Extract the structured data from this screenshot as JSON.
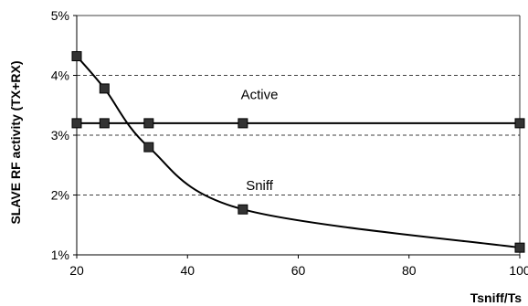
{
  "chart_data": {
    "type": "line",
    "xlabel": "Tsniff/Ts",
    "ylabel": "SLAVE  RF activity (TX+RX)",
    "xlim": [
      20,
      100
    ],
    "ylim": [
      1,
      5
    ],
    "x_ticks": [
      20,
      40,
      60,
      80,
      100
    ],
    "x_tick_labels": [
      "20",
      "40",
      "60",
      "80",
      "100"
    ],
    "y_ticks": [
      1,
      2,
      3,
      4,
      5
    ],
    "y_tick_labels": [
      "1%",
      "2%",
      "3%",
      "4%",
      "5%"
    ],
    "grid": "horizontal dashed",
    "series": [
      {
        "name": "Active",
        "color": "#000000",
        "x": [
          20,
          25,
          33,
          50,
          100
        ],
        "y": [
          3.2,
          3.2,
          3.2,
          3.2,
          3.2
        ]
      },
      {
        "name": "Sniff",
        "color": "#000000",
        "x": [
          20,
          25,
          33,
          50,
          100
        ],
        "y": [
          4.32,
          3.78,
          2.8,
          1.76,
          1.12
        ]
      }
    ]
  }
}
